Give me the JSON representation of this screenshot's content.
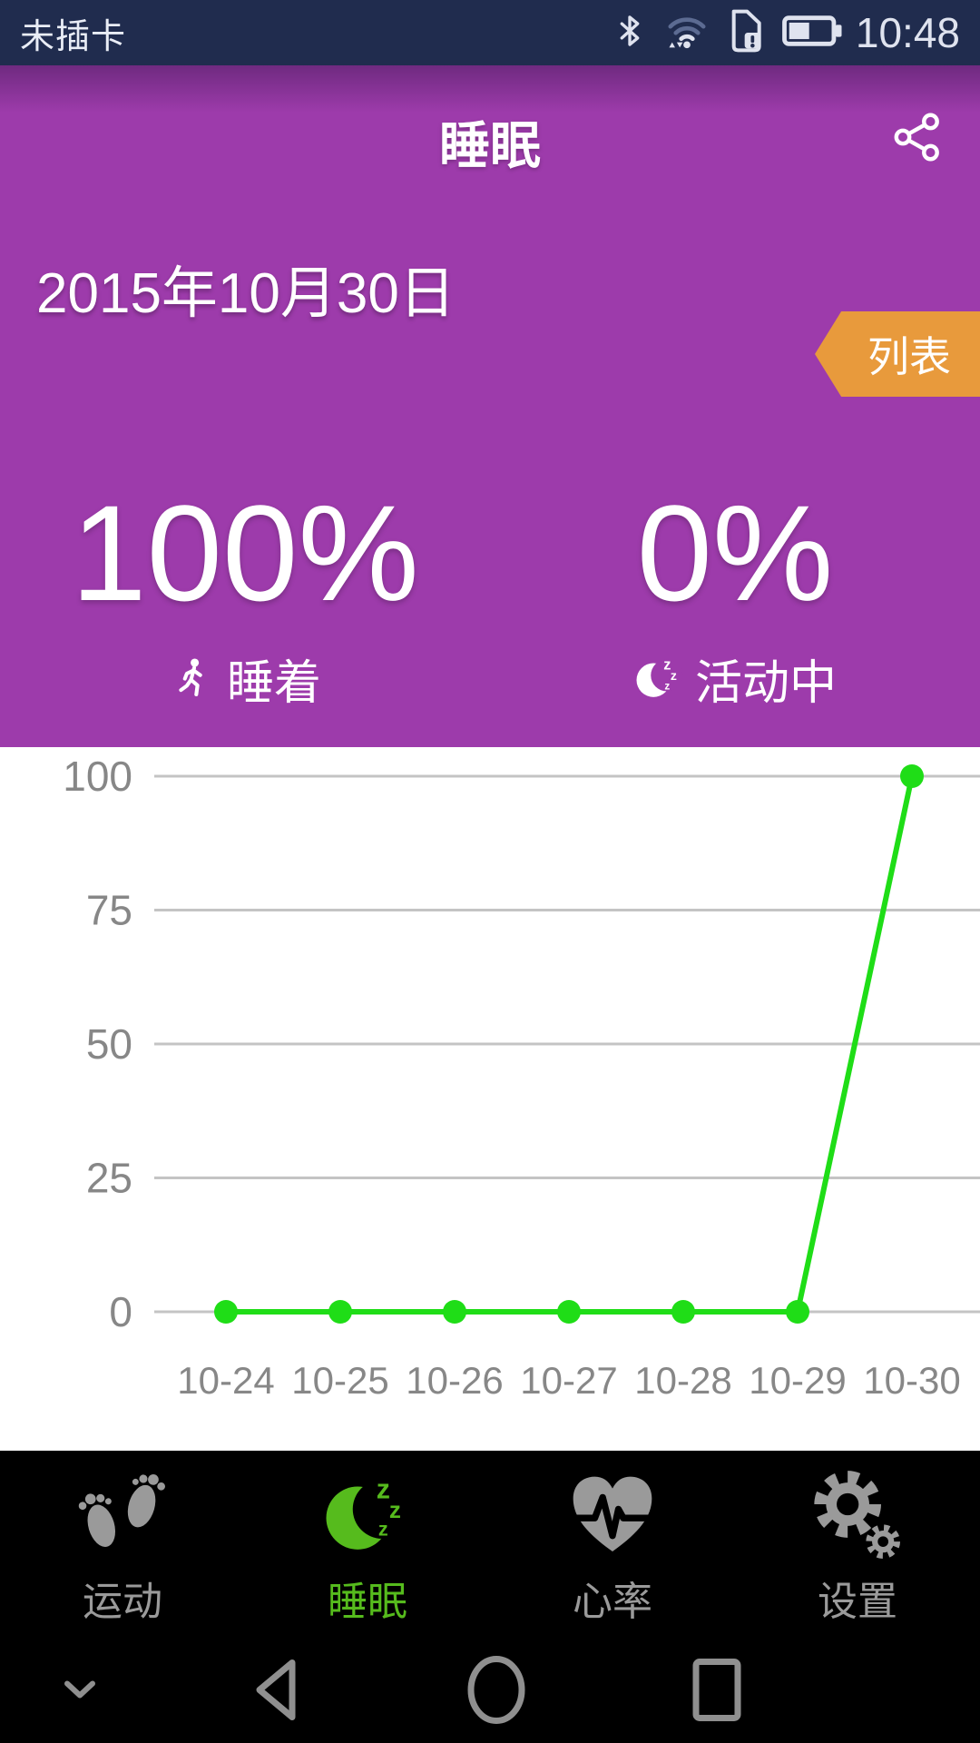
{
  "colors": {
    "statusbar_bg": "#202c4e",
    "header_bg": "#9d3bab",
    "ribbon_bg": "#e89a3c",
    "nav_active": "#56bb1d",
    "nav_inactive": "#9a9a9a"
  },
  "status_bar": {
    "carrier": "未插卡",
    "time": "10:48",
    "icons": [
      "bluetooth-icon",
      "wifi-icon",
      "sim-card-alert-icon",
      "battery-icon"
    ]
  },
  "header": {
    "title": "睡眠",
    "share_icon": "share-icon",
    "date": "2015年10月30日",
    "list_button_label": "列表",
    "stats": [
      {
        "value": "100%",
        "label": "睡着",
        "icon": "walker-icon"
      },
      {
        "value": "0%",
        "label": "活动中",
        "icon": "moon-zzz-icon"
      }
    ]
  },
  "chart_data": {
    "type": "line",
    "x": [
      "10-24",
      "10-25",
      "10-26",
      "10-27",
      "10-28",
      "10-29",
      "10-30"
    ],
    "values": [
      0,
      0,
      0,
      0,
      0,
      0,
      100
    ],
    "ylim": [
      0,
      100
    ],
    "yticks": [
      0,
      25,
      50,
      75,
      100
    ],
    "grid": true,
    "legend": "none",
    "line_color": "#1fdd17",
    "grid_color": "#c4c4c4",
    "tick_color": "#878787"
  },
  "bottom_nav": {
    "items": [
      {
        "label": "运动",
        "icon": "footprints-icon",
        "active": false
      },
      {
        "label": "睡眠",
        "icon": "moon-zzz-icon",
        "active": true
      },
      {
        "label": "心率",
        "icon": "heart-pulse-icon",
        "active": false
      },
      {
        "label": "设置",
        "icon": "gears-icon",
        "active": false
      }
    ]
  },
  "system_nav": {
    "buttons": [
      "collapse-chevron-icon",
      "back-icon",
      "home-icon",
      "recents-icon"
    ]
  }
}
